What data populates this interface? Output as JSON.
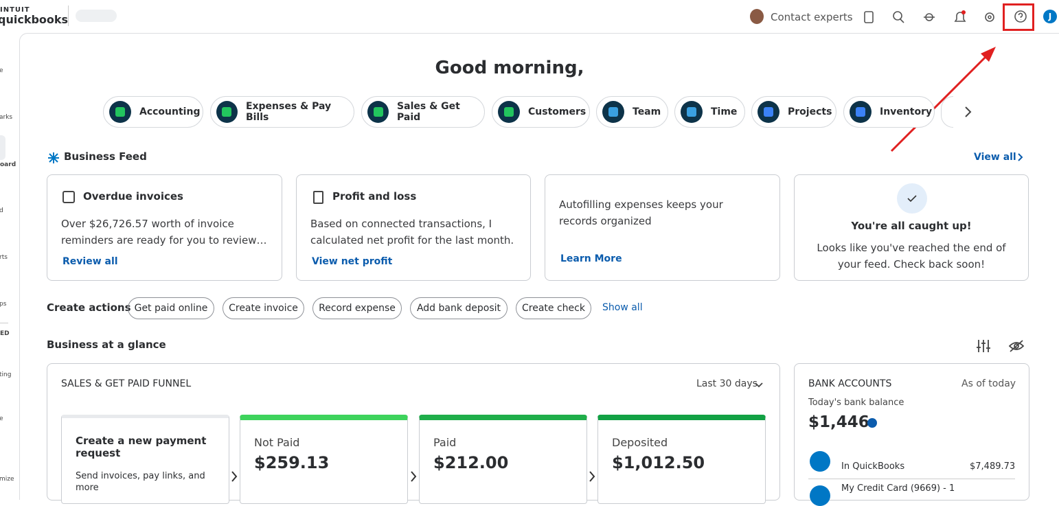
{
  "header": {
    "brand_top": "INTUIT",
    "brand": "quickbooks",
    "contact": "Contact experts",
    "avatar": "J"
  },
  "sidebar": [
    "e",
    "arks",
    "oard",
    "d",
    "rts",
    "ps",
    "ED",
    "ting",
    "e",
    "mize"
  ],
  "greeting": "Good morning,",
  "apps": [
    "Accounting",
    "Expenses & Pay Bills",
    "Sales & Get Paid",
    "Customers",
    "Team",
    "Time",
    "Projects",
    "Inventory"
  ],
  "feed": {
    "title": "Business Feed",
    "view_all": "View all",
    "cards": [
      {
        "title": "Overdue invoices",
        "body": "Over $26,726.57 worth of invoice reminders are ready for you to review…",
        "link": "Review all"
      },
      {
        "title": "Profit and loss",
        "body": "Based on connected transactions, I calculated net profit for the last month.",
        "link": "View net profit"
      },
      {
        "body": "Autofilling expenses keeps your records organized",
        "link": "Learn More"
      },
      {
        "title": "You're all caught up!",
        "body": "Looks like you've reached the end of your feed. Check back soon!"
      }
    ]
  },
  "actions": {
    "label": "Create actions",
    "buttons": [
      "Get paid online",
      "Create invoice",
      "Record expense",
      "Add bank deposit",
      "Create check"
    ],
    "show_all": "Show all"
  },
  "glance": {
    "title": "Business at a glance"
  },
  "funnel": {
    "title": "SALES & GET PAID FUNNEL",
    "range": "Last 30 days",
    "request": {
      "title": "Create a new payment request",
      "body": "Send invoices, pay links, and more"
    },
    "stages": [
      {
        "label": "Not Paid",
        "amount": "$259.13"
      },
      {
        "label": "Paid",
        "amount": "$212.00"
      },
      {
        "label": "Deposited",
        "amount": "$1,012.50"
      }
    ]
  },
  "bank": {
    "title": "BANK ACCOUNTS",
    "as_of": "As of today",
    "balance_label": "Today's bank balance",
    "balance": "$1,446",
    "rows": [
      {
        "name": "In QuickBooks",
        "amount": "$7,489.73"
      }
    ],
    "partial": "My Credit Card (9669) - 1"
  }
}
